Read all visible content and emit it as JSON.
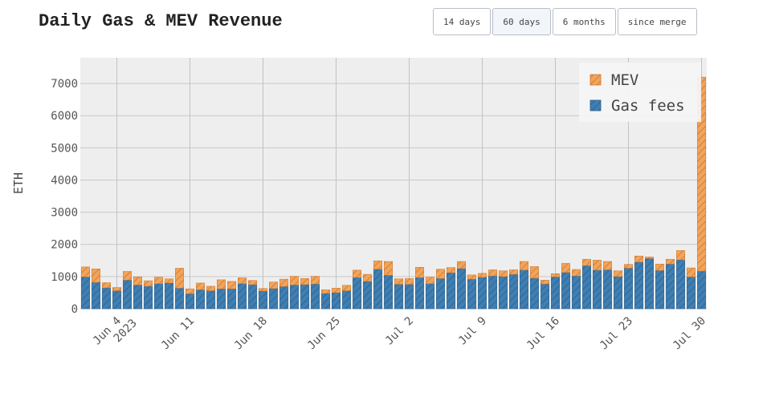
{
  "header": {
    "title": "Daily Gas & MEV Revenue"
  },
  "range_buttons": [
    {
      "label": "14 days",
      "active": false
    },
    {
      "label": "60 days",
      "active": true
    },
    {
      "label": "6 months",
      "active": false
    },
    {
      "label": "since merge",
      "active": false
    }
  ],
  "colors": {
    "gas": "#3f7fb3",
    "mev": "#f2a45a",
    "plot_bg": "#eeeeee"
  },
  "chart_data": {
    "type": "bar",
    "stacked": true,
    "title": "Daily Gas & MEV Revenue",
    "xlabel": "",
    "ylabel": "ETH",
    "ylim": [
      0,
      7800
    ],
    "yticks": [
      0,
      1000,
      2000,
      3000,
      4000,
      5000,
      6000,
      7000
    ],
    "grid": true,
    "legend_position": "top-right",
    "x_start": "2023-06-01",
    "x_end": "2023-07-30",
    "x_ticks": [
      {
        "date": "2023-06-04",
        "label": "Jun 4",
        "sublabel": "2023"
      },
      {
        "date": "2023-06-11",
        "label": "Jun 11"
      },
      {
        "date": "2023-06-18",
        "label": "Jun 18"
      },
      {
        "date": "2023-06-25",
        "label": "Jun 25"
      },
      {
        "date": "2023-07-02",
        "label": "Jul 2"
      },
      {
        "date": "2023-07-09",
        "label": "Jul 9"
      },
      {
        "date": "2023-07-16",
        "label": "Jul 16"
      },
      {
        "date": "2023-07-23",
        "label": "Jul 23"
      },
      {
        "date": "2023-07-30",
        "label": "Jul 30"
      }
    ],
    "series": [
      {
        "name": "Gas fees",
        "values": [
          990,
          820,
          650,
          560,
          890,
          740,
          700,
          780,
          800,
          640,
          470,
          590,
          560,
          620,
          620,
          780,
          750,
          550,
          630,
          690,
          740,
          750,
          770,
          480,
          500,
          560,
          970,
          850,
          1230,
          1040,
          760,
          760,
          970,
          780,
          940,
          1120,
          1250,
          920,
          980,
          1020,
          1000,
          1070,
          1200,
          950,
          770,
          990,
          1130,
          1020,
          1340,
          1200,
          1210,
          1000,
          1260,
          1450,
          1560,
          1190,
          1390,
          1520,
          990,
          1170
        ]
      },
      {
        "name": "MEV",
        "values": [
          310,
          420,
          160,
          100,
          270,
          250,
          170,
          200,
          130,
          620,
          150,
          210,
          140,
          280,
          230,
          180,
          130,
          80,
          200,
          230,
          270,
          190,
          240,
          110,
          140,
          170,
          230,
          220,
          260,
          430,
          170,
          180,
          320,
          200,
          290,
          160,
          220,
          130,
          120,
          190,
          180,
          140,
          270,
          360,
          120,
          100,
          280,
          200,
          200,
          310,
          260,
          180,
          120,
          190,
          50,
          200,
          150,
          290,
          280,
          6030
        ]
      }
    ]
  }
}
